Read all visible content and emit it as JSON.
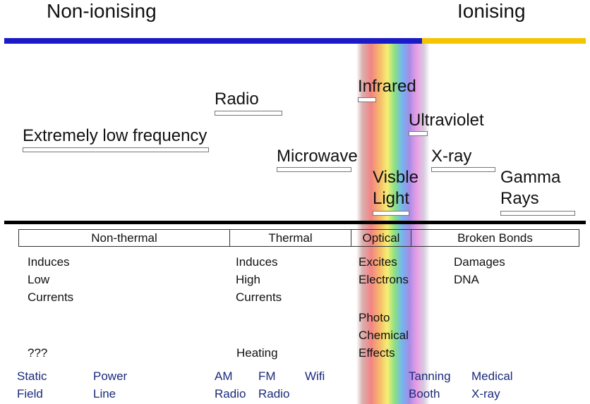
{
  "header": {
    "non_ionising": "Non-ionising",
    "ionising": "Ionising",
    "colors": {
      "non_ionising": "#1a1ac8",
      "ionising": "#f5c400"
    }
  },
  "bands": {
    "elf": "Extremely low frequency",
    "radio": "Radio",
    "microwave": "Microwave",
    "infrared": "Infrared",
    "visible_line1": "Visble",
    "visible_line2": "Light",
    "ultraviolet": "Ultraviolet",
    "xray": "X-ray",
    "gamma_line1": "Gamma",
    "gamma_line2": "Rays"
  },
  "categories": {
    "non_thermal": "Non-thermal",
    "thermal": "Thermal",
    "optical": "Optical",
    "broken_bonds": "Broken Bonds"
  },
  "effects": {
    "non_thermal": [
      "Induces",
      "Low",
      "Currents"
    ],
    "non_thermal_unknown": "???",
    "thermal": [
      "Induces",
      "High",
      "Currents"
    ],
    "thermal_heating": "Heating",
    "optical": [
      "Excites",
      "Electrons"
    ],
    "optical_photo": [
      "Photo",
      "Chemical",
      "Effects"
    ],
    "broken_bonds": [
      "Damages",
      "DNA"
    ]
  },
  "examples": {
    "static": [
      "Static",
      "Field"
    ],
    "power": [
      "Power",
      "Line"
    ],
    "am": [
      "AM",
      "Radio"
    ],
    "fm": [
      "FM",
      "Radio"
    ],
    "wifi": "Wifi",
    "tanning": [
      "Tanning",
      "Booth"
    ],
    "medical": [
      "Medical",
      "X-ray"
    ]
  }
}
